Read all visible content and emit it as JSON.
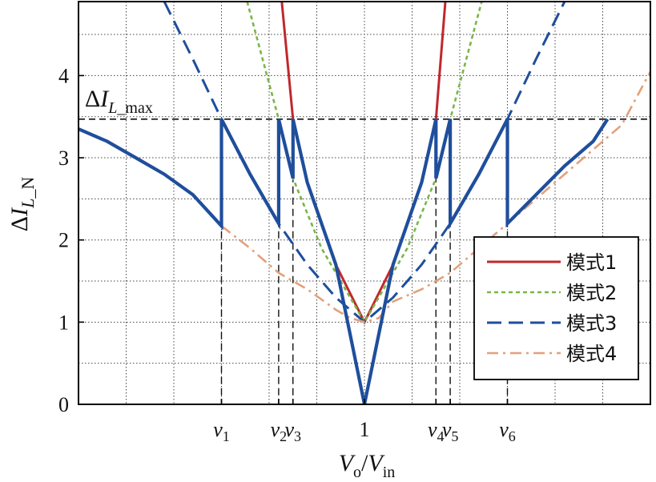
{
  "chart_data": {
    "type": "line",
    "title": "",
    "xlabel": "Vo/Vin",
    "ylabel": "ΔIL_N",
    "ylim": [
      0,
      4.9
    ],
    "xlim": [
      0.0,
      2.0
    ],
    "yticks": [
      0,
      1,
      2,
      3,
      4
    ],
    "xticks": [
      {
        "x": 0.5,
        "label": "v1"
      },
      {
        "x": 0.7,
        "label": "v2"
      },
      {
        "x": 0.75,
        "label": "v3"
      },
      {
        "x": 1.0,
        "label": "1"
      },
      {
        "x": 1.25,
        "label": "v4"
      },
      {
        "x": 1.3,
        "label": "v5"
      },
      {
        "x": 1.5,
        "label": "v6"
      }
    ],
    "grid": true,
    "legend_position": "bottom-right",
    "reference_line": {
      "y": 3.47,
      "label": "ΔIL_max"
    },
    "colors": {
      "mode1": "#c0282d",
      "mode2": "#7ab648",
      "mode3": "#1f4e9c",
      "mode4": "#e3a07a",
      "result": "#1f4e9c"
    },
    "series": [
      {
        "name": "模式1",
        "style": "solid",
        "color": "#c0282d",
        "points": [
          [
            0.711,
            4.9
          ],
          [
            0.75,
            3.47
          ],
          [
            0.8,
            2.7
          ],
          [
            0.9,
            1.7
          ],
          [
            1.0,
            1.0
          ],
          [
            1.1,
            1.7
          ],
          [
            1.2,
            2.7
          ],
          [
            1.25,
            3.47
          ],
          [
            1.283,
            4.9
          ]
        ]
      },
      {
        "name": "模式2",
        "style": "dotted",
        "color": "#7ab648",
        "points": [
          [
            0.59,
            4.9
          ],
          [
            0.7,
            3.47
          ],
          [
            0.75,
            2.75
          ],
          [
            0.85,
            1.9
          ],
          [
            1.0,
            1.0
          ],
          [
            1.15,
            1.9
          ],
          [
            1.25,
            2.75
          ],
          [
            1.3,
            3.47
          ],
          [
            1.41,
            4.9
          ]
        ]
      },
      {
        "name": "模式3",
        "style": "dashed",
        "color": "#1f4e9c",
        "points": [
          [
            0.3,
            4.9
          ],
          [
            0.4,
            4.2
          ],
          [
            0.5,
            3.47
          ],
          [
            0.6,
            2.8
          ],
          [
            0.7,
            2.2
          ],
          [
            0.8,
            1.7
          ],
          [
            0.9,
            1.3
          ],
          [
            1.0,
            1.0
          ],
          [
            1.1,
            1.3
          ],
          [
            1.2,
            1.7
          ],
          [
            1.3,
            2.2
          ],
          [
            1.4,
            2.8
          ],
          [
            1.5,
            3.47
          ],
          [
            1.6,
            4.2
          ],
          [
            1.7,
            4.9
          ]
        ]
      },
      {
        "name": "模式4",
        "style": "dashdot",
        "color": "#e3a07a",
        "points": [
          [
            0.5,
            2.17
          ],
          [
            0.6,
            1.9
          ],
          [
            0.7,
            1.6
          ],
          [
            0.8,
            1.4
          ],
          [
            0.9,
            1.15
          ],
          [
            0.95,
            1.05
          ],
          [
            1.0,
            1.0
          ],
          [
            1.05,
            1.05
          ],
          [
            1.1,
            1.25
          ],
          [
            1.2,
            1.4
          ],
          [
            1.3,
            1.6
          ],
          [
            1.4,
            1.9
          ],
          [
            1.5,
            2.2
          ],
          [
            1.6,
            2.5
          ],
          [
            1.7,
            2.8
          ],
          [
            1.8,
            3.1
          ],
          [
            1.9,
            3.4
          ],
          [
            2.0,
            4.05
          ]
        ]
      },
      {
        "name": "",
        "style": "thick",
        "color": "#1f4e9c",
        "points": [
          [
            0.0,
            3.35
          ],
          [
            0.1,
            3.2
          ],
          [
            0.2,
            3.0
          ],
          [
            0.3,
            2.8
          ],
          [
            0.4,
            2.55
          ],
          [
            0.5,
            2.17
          ],
          [
            0.5,
            3.47
          ],
          [
            0.6,
            2.8
          ],
          [
            0.7,
            2.2
          ],
          [
            0.7,
            3.47
          ],
          [
            0.75,
            2.75
          ],
          [
            0.75,
            3.47
          ],
          [
            0.8,
            2.7
          ],
          [
            0.9,
            1.7
          ],
          [
            1.0,
            0.0
          ],
          [
            1.1,
            1.7
          ],
          [
            1.2,
            2.7
          ],
          [
            1.25,
            3.47
          ],
          [
            1.25,
            2.75
          ],
          [
            1.3,
            3.47
          ],
          [
            1.3,
            2.2
          ],
          [
            1.4,
            2.8
          ],
          [
            1.5,
            3.47
          ],
          [
            1.5,
            2.2
          ],
          [
            1.6,
            2.55
          ],
          [
            1.7,
            2.9
          ],
          [
            1.8,
            3.2
          ],
          [
            1.85,
            3.47
          ]
        ]
      }
    ]
  }
}
